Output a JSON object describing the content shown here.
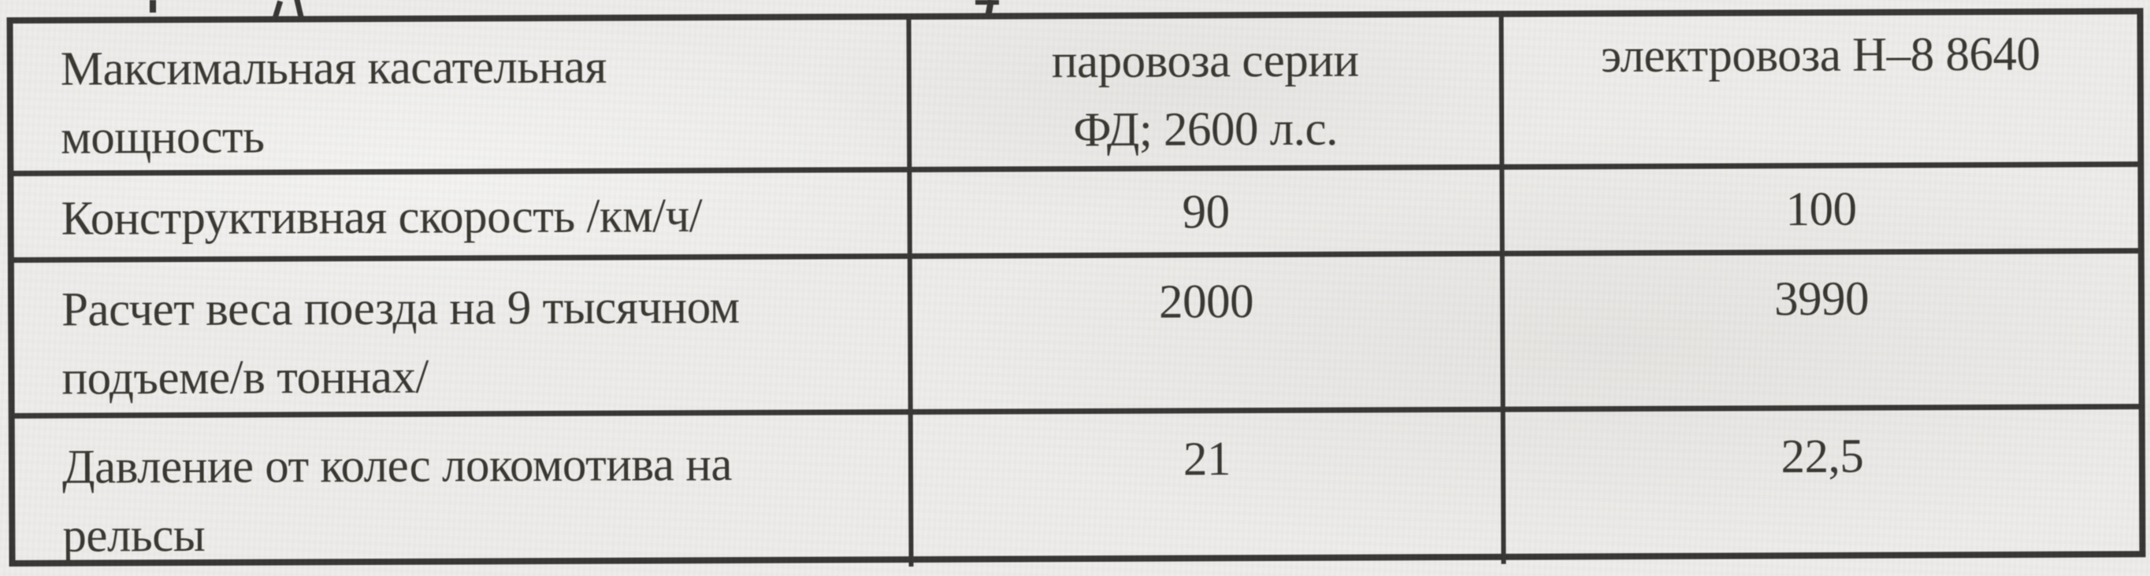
{
  "colors": {
    "paper": "#edecea",
    "ink": "#35332d",
    "line": "#343230"
  },
  "table": {
    "description": "comparison-of-steam-and-electric-locomotive",
    "rows": [
      {
        "label": "Максимальная касательная\nмощность",
        "steam": "паровоза серии\nФД; 2600 л.с.",
        "electric": "электровоза Н–8 8640"
      },
      {
        "label": "Конструктивная скорость /км/ч/",
        "steam": "90",
        "electric": "100"
      },
      {
        "label": "Расчет веса поезда на 9 тысячном\nподъеме/в тоннах/",
        "steam": "2000",
        "electric": "3990"
      },
      {
        "label": "Давление от колес локомотива на\nрельсы",
        "steam": "21",
        "electric": "22,5"
      }
    ]
  },
  "artifacts": [
    "cut-off-letter-stem",
    "cut-off-letter-caret",
    "cut-off-letter-hook"
  ]
}
